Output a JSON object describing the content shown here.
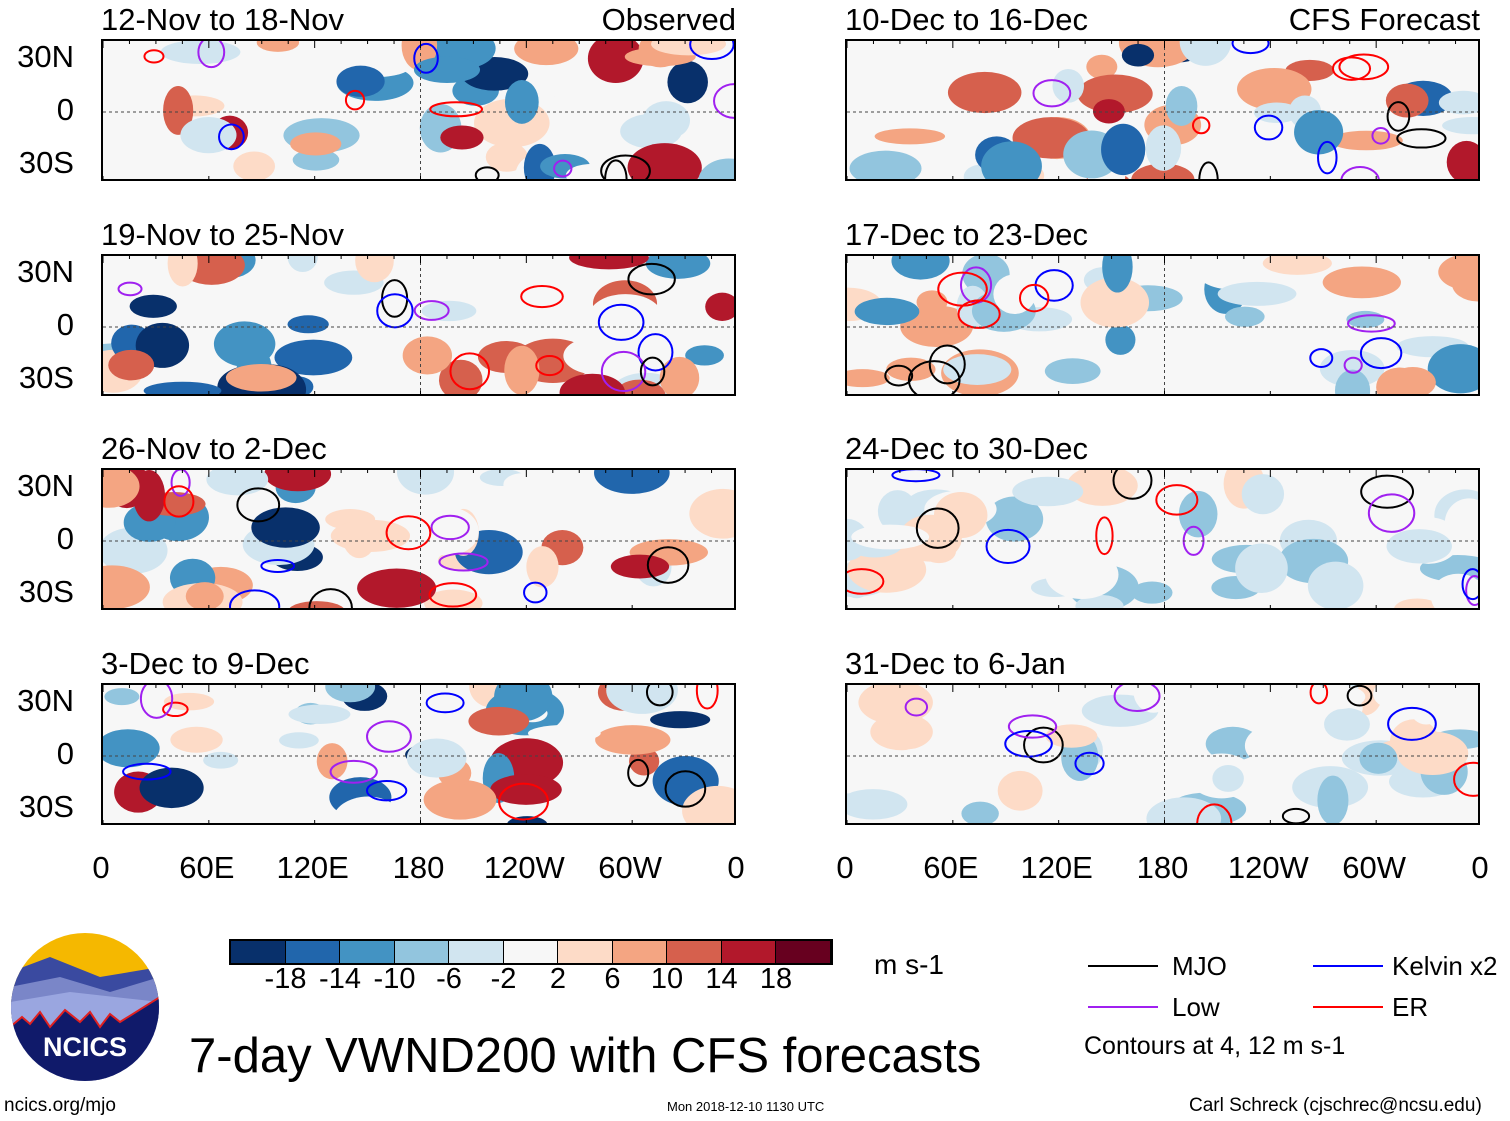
{
  "chart_data": {
    "type": "heatmap",
    "title": "7-day VWND200 with CFS forecasts",
    "units": "m s-1",
    "variable": "VWND200",
    "columns": [
      {
        "label": "Observed",
        "panels": [
          "12-Nov to 18-Nov",
          "19-Nov to 25-Nov",
          "26-Nov to 2-Dec",
          "3-Dec to 9-Dec"
        ]
      },
      {
        "label": "CFS Forecast",
        "panels": [
          "10-Dec to 16-Dec",
          "17-Dec to 23-Dec",
          "24-Dec to 30-Dec",
          "31-Dec to 6-Jan"
        ]
      }
    ],
    "x_ticks": [
      "0",
      "60E",
      "120E",
      "180",
      "120W",
      "60W",
      "0"
    ],
    "y_ticks": [
      "30N",
      "0",
      "30S"
    ],
    "colorbar": {
      "levels": [
        "-18",
        "-14",
        "-10",
        "-6",
        "-2",
        "2",
        "6",
        "10",
        "14",
        "18"
      ],
      "colors": [
        "#08306b",
        "#2166ac",
        "#4393c3",
        "#92c5de",
        "#d1e5f0",
        "#f7f7f7",
        "#fddbc7",
        "#f4a582",
        "#d6604d",
        "#b2182b",
        "#67001f"
      ]
    },
    "legend": [
      {
        "label": "MJO",
        "color": "#000000"
      },
      {
        "label": "Kelvin x2",
        "color": "#0000ff"
      },
      {
        "label": "Low",
        "color": "#a020f0"
      },
      {
        "label": "ER",
        "color": "#ff0000"
      }
    ],
    "contour_note": "Contours at 4, 12 m s-1"
  },
  "footer": {
    "left": "ncics.org/mjo",
    "center": "Mon 2018-12-10 1130 UTC",
    "right": "Carl Schreck (cjschrec@ncsu.edu)"
  },
  "logo": {
    "text": "NCICS"
  }
}
